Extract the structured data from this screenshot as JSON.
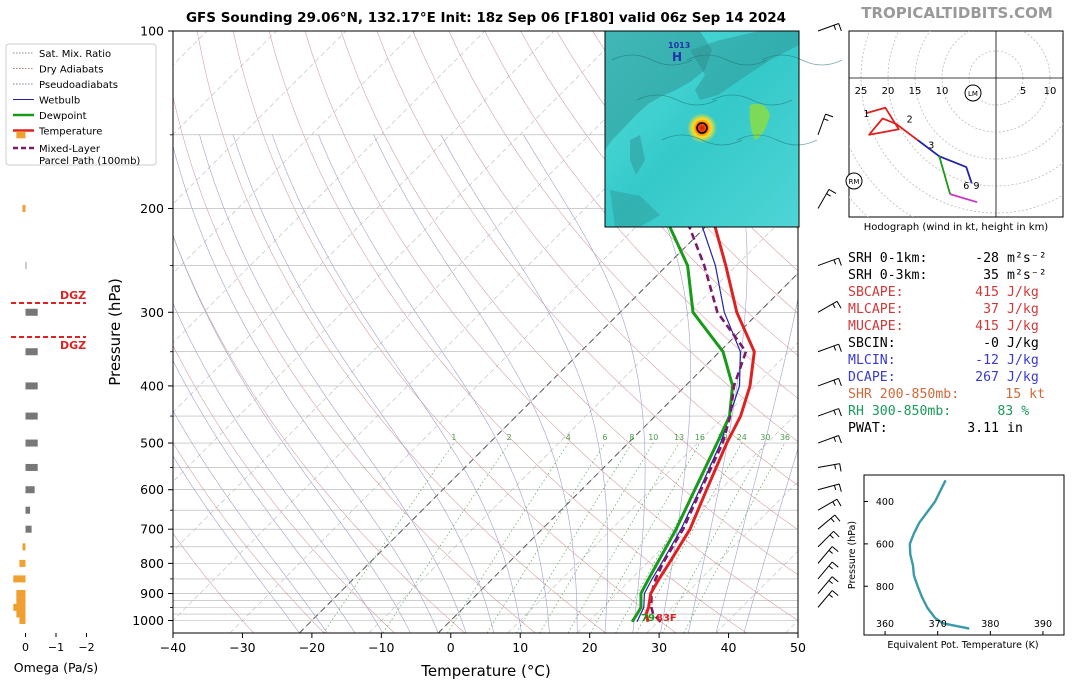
{
  "title": "GFS Sounding 29.06°N, 132.17°E Init: 18z Sep 06 [F180] valid 06z Sep 14 2024",
  "brand": "TROPICALTIDBITS.COM",
  "skewt": {
    "xlabel": "Temperature (°C)",
    "ylabel": "Pressure (hPa)",
    "x_ticks": [
      "−40",
      "−30",
      "−20",
      "−10",
      "0",
      "10",
      "20",
      "30",
      "40",
      "50"
    ],
    "y_ticks": [
      "100",
      "200",
      "300",
      "400",
      "500",
      "600",
      "700",
      "800",
      "900",
      "1000"
    ],
    "mixing_ratio_labels": [
      "1",
      "2",
      "4",
      "6",
      "8",
      "10",
      "13",
      "16",
      "20",
      "24",
      "30",
      "36"
    ],
    "sfc_temp_label": "83F",
    "sfc_dew_label": "79",
    "legend": {
      "items": [
        {
          "label": "Sat. Mix. Ratio",
          "style": "dotted",
          "color": "#888888"
        },
        {
          "label": "Dry Adiabats",
          "style": "dotted",
          "color": "#b08080"
        },
        {
          "label": "Pseudoadiabats",
          "style": "dotted",
          "color": "#8080b0"
        },
        {
          "label": "Wetbulb",
          "style": "solid",
          "color": "#2222aa"
        },
        {
          "label": "Dewpoint",
          "style": "solid",
          "color": "#1a9a1a"
        },
        {
          "label": "Temperature",
          "style": "solid",
          "color": "#dd2222"
        },
        {
          "label": "Mixed-Layer",
          "label2": "Parcel Path (100mb)",
          "style": "dashed",
          "color": "#7a1a6a"
        }
      ]
    }
  },
  "omega": {
    "xlabel": "Omega (Pa/s)",
    "ticks": [
      "0",
      "−1",
      "−2"
    ],
    "dgz_label": "DGZ"
  },
  "hodograph": {
    "caption": "Hodograph (wind in kt, height in km)",
    "ring_labels": [
      "25",
      "20",
      "15",
      "10",
      "5",
      "10"
    ],
    "height_labels": [
      "1",
      "2",
      "3",
      "6",
      "9"
    ],
    "motion_labels": [
      "LM",
      "RM"
    ]
  },
  "theta_e": {
    "xlabel": "Equivalent Pot. Temperature (K)",
    "ylabel": "Pressure (hPa)",
    "x_ticks": [
      "360",
      "370",
      "380",
      "390"
    ],
    "y_ticks": [
      "400",
      "600",
      "800"
    ]
  },
  "indices": [
    {
      "label": "SRH 0-1km:",
      "value": "-28",
      "unit": "m²s⁻²",
      "color": "#000000"
    },
    {
      "label": "SRH 0-3km:",
      "value": "35",
      "unit": "m²s⁻²",
      "color": "#000000"
    },
    {
      "label": "SBCAPE:",
      "value": "415",
      "unit": "J/kg",
      "color": "#d03a3a"
    },
    {
      "label": "MLCAPE:",
      "value": "37",
      "unit": "J/kg",
      "color": "#d03a3a"
    },
    {
      "label": "MUCAPE:",
      "value": "415",
      "unit": "J/kg",
      "color": "#d03a3a"
    },
    {
      "label": "SBCIN:",
      "value": "-0",
      "unit": "J/kg",
      "color": "#000000"
    },
    {
      "label": "MLCIN:",
      "value": "-12",
      "unit": "J/kg",
      "color": "#3a3ad0"
    },
    {
      "label": "DCAPE:",
      "value": "267",
      "unit": "J/kg",
      "color": "#3a3ad0"
    },
    {
      "label": "SHR 200-850mb:",
      "value": "15",
      "unit": "kt",
      "color": "#d06a3a"
    },
    {
      "label": "RH 300-850mb:",
      "value": "83",
      "unit": "%",
      "color": "#1a9a5a"
    },
    {
      "label": "PWAT:",
      "value": "3.11",
      "unit": "in",
      "color": "#000000"
    }
  ],
  "map_inset": {
    "labels": [
      "1013",
      "H"
    ]
  },
  "chart_data": [
    {
      "type": "line",
      "title": "GFS Sounding 29.06°N, 132.17°E Init: 18z Sep 06 [F180] valid 06z Sep 14 2024",
      "xlabel": "Temperature (°C)",
      "ylabel": "Pressure (hPa)",
      "xlim": [
        -40,
        50
      ],
      "ylim": [
        1050,
        100
      ],
      "y_scale": "log",
      "skew": true,
      "series": [
        {
          "name": "Temperature",
          "color": "#dd2222",
          "points": [
            [
              1005,
              28.6
            ],
            [
              975,
              27.2
            ],
            [
              950,
              26.6
            ],
            [
              900,
              24.9
            ],
            [
              850,
              24.0
            ],
            [
              800,
              23.2
            ],
            [
              700,
              21.3
            ],
            [
              600,
              18.0
            ],
            [
              500,
              14.2
            ],
            [
              450,
              12.3
            ],
            [
              400,
              9.3
            ],
            [
              350,
              5.0
            ],
            [
              300,
              -3.2
            ],
            [
              250,
              -11.5
            ],
            [
              200,
              -22.0
            ],
            [
              150,
              -37.0
            ],
            [
              100,
              -56.0
            ]
          ]
        },
        {
          "name": "Dewpoint",
          "color": "#1a9a1a",
          "points": [
            [
              1005,
              26.3
            ],
            [
              975,
              25.9
            ],
            [
              950,
              25.5
            ],
            [
              900,
              23.5
            ],
            [
              850,
              22.5
            ],
            [
              800,
              21.5
            ],
            [
              700,
              19.3
            ],
            [
              600,
              16.3
            ],
            [
              500,
              12.8
            ],
            [
              450,
              10.7
            ],
            [
              400,
              6.8
            ],
            [
              350,
              0.5
            ],
            [
              300,
              -9.5
            ],
            [
              250,
              -17.0
            ],
            [
              200,
              -29.0
            ],
            [
              150,
              -45.0
            ],
            [
              100,
              -60.0
            ]
          ]
        },
        {
          "name": "Wetbulb",
          "color": "#2222aa",
          "points": [
            [
              1005,
              27.0
            ],
            [
              950,
              25.9
            ],
            [
              900,
              24.0
            ],
            [
              850,
              23.0
            ],
            [
              800,
              22.1
            ],
            [
              700,
              20.0
            ],
            [
              600,
              17.0
            ],
            [
              500,
              13.3
            ],
            [
              400,
              7.8
            ],
            [
              350,
              3.0
            ],
            [
              300,
              -5.0
            ],
            [
              250,
              -13.0
            ],
            [
              200,
              -24.0
            ],
            [
              150,
              -40.0
            ],
            [
              100,
              -57.0
            ]
          ]
        },
        {
          "name": "Mixed-Layer Parcel Path (100mb)",
          "color": "#7a1a6a",
          "points": [
            [
              1005,
              30.4
            ],
            [
              975,
              28.2
            ],
            [
              950,
              27.0
            ],
            [
              900,
              25.0
            ],
            [
              850,
              23.5
            ],
            [
              800,
              22.3
            ],
            [
              700,
              20.3
            ],
            [
              600,
              17.2
            ],
            [
              500,
              13.6
            ],
            [
              450,
              10.8
            ],
            [
              400,
              7.0
            ],
            [
              350,
              3.8
            ],
            [
              300,
              -6.0
            ],
            [
              250,
              -14.6
            ],
            [
              200,
              -26.0
            ],
            [
              150,
              -42.0
            ],
            [
              100,
              -59.0
            ]
          ]
        }
      ]
    },
    {
      "type": "bar",
      "title": "",
      "xlabel": "Omega (Pa/s)",
      "ylabel": "Pressure (hPa)",
      "xlim": [
        0.5,
        -2.5
      ],
      "orientation": "horizontal",
      "categories": [
        "1000",
        "975",
        "950",
        "925",
        "900",
        "850",
        "800",
        "750",
        "700",
        "650",
        "600",
        "550",
        "500",
        "450",
        "400",
        "350",
        "300",
        "250",
        "200",
        "150"
      ],
      "values": [
        0.2,
        0.3,
        0.4,
        0.3,
        0.3,
        0.4,
        0.2,
        0.1,
        -0.2,
        -0.15,
        -0.3,
        -0.4,
        -0.4,
        -0.4,
        -0.4,
        -0.4,
        -0.4,
        -0.02,
        0.1,
        0.3
      ]
    },
    {
      "type": "line",
      "title": "Hodograph (wind in kt, height in km)",
      "xlabel": "",
      "ylabel": "",
      "xlim": [
        -30,
        13
      ],
      "ylim": [
        -23,
        8
      ],
      "series": [
        {
          "name": "0-3 km",
          "color": "#dd2222",
          "points": [
            [
              -24,
              -6.5
            ],
            [
              -20.5,
              -5.5
            ],
            [
              -18,
              -9.5
            ],
            [
              -23.5,
              -10.5
            ],
            [
              -21,
              -7.5
            ],
            [
              -18.5,
              -8.5
            ],
            [
              -14.5,
              -11.5
            ]
          ]
        },
        {
          "name": "3-6 km",
          "color": "#2222aa",
          "points": [
            [
              -14.5,
              -11.5
            ],
            [
              -10.5,
              -14.5
            ],
            [
              -5.5,
              -16.5
            ],
            [
              -4.5,
              -19.5
            ]
          ]
        },
        {
          "name": "6-9 km",
          "color": "#1a9a1a",
          "points": [
            [
              -10.5,
              -14.5
            ],
            [
              -8.5,
              -21.5
            ]
          ]
        },
        {
          "name": "9+ km",
          "color": "#cc33cc",
          "points": [
            [
              -8.5,
              -21.5
            ],
            [
              -3.5,
              -23
            ]
          ]
        }
      ]
    },
    {
      "type": "line",
      "title": "",
      "xlabel": "Equivalent Pot. Temperature (K)",
      "ylabel": "Pressure (hPa)",
      "xlim": [
        356,
        394
      ],
      "ylim": [
        1000,
        300
      ],
      "series": [
        {
          "name": "theta-e",
          "color": "#3a9aaa",
          "points": [
            [
              376.0,
              1000
            ],
            [
              371.0,
              975
            ],
            [
              369.5,
              950
            ],
            [
              368.0,
              900
            ],
            [
              367.0,
              850
            ],
            [
              366.2,
              800
            ],
            [
              365.5,
              750
            ],
            [
              365.3,
              700
            ],
            [
              364.8,
              650
            ],
            [
              364.7,
              600
            ],
            [
              365.5,
              550
            ],
            [
              366.5,
              500
            ],
            [
              368.0,
              450
            ],
            [
              369.5,
              400
            ],
            [
              370.5,
              350
            ],
            [
              371.5,
              300
            ]
          ]
        }
      ]
    }
  ]
}
